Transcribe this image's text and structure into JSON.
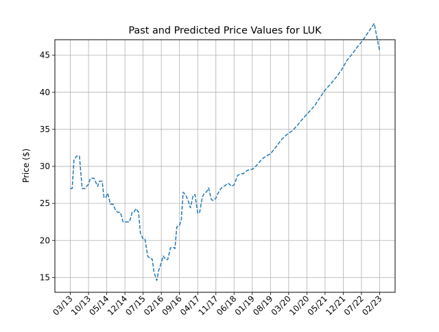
{
  "chart_data": {
    "type": "line",
    "title": "Past and Predicted Price Values for LUK",
    "xlabel": "",
    "ylabel": "Price ($)",
    "x_tick_labels": [
      "03/13",
      "10/13",
      "05/14",
      "12/14",
      "07/15",
      "02/16",
      "09/16",
      "04/17",
      "11/17",
      "06/18",
      "01/19",
      "08/19",
      "03/20",
      "10/20",
      "05/21",
      "12/21",
      "07/22",
      "02/23"
    ],
    "y_ticks": [
      15,
      20,
      25,
      30,
      35,
      40,
      45
    ],
    "xlim": [
      -0.85,
      17.85
    ],
    "ylim": [
      13.0,
      47.1
    ],
    "grid": true,
    "line_color": "#1f77b4",
    "line_style": "dashed",
    "series": [
      {
        "x": [
          0.0,
          0.1,
          0.2,
          0.35,
          0.5,
          0.65,
          0.8,
          1.0,
          1.1,
          1.3,
          1.5,
          1.6,
          1.75,
          1.85,
          1.95,
          2.05,
          2.2,
          2.35,
          2.5,
          2.6,
          2.75,
          2.9,
          3.0,
          3.1,
          3.25,
          3.4,
          3.5,
          3.6,
          3.75,
          3.85,
          4.0,
          4.1,
          4.25,
          4.4,
          4.5,
          4.6,
          4.75,
          4.85,
          5.0,
          5.1,
          5.25,
          5.35,
          5.5,
          5.65,
          5.75,
          5.85,
          6.0,
          6.1,
          6.2,
          6.35,
          6.5,
          6.6,
          6.75,
          6.85,
          7.0,
          7.1,
          7.25,
          7.35,
          7.5,
          7.6,
          7.75,
          7.85,
          8.0,
          8.1,
          8.25,
          8.35,
          8.5,
          8.65,
          8.75,
          8.85,
          9.0,
          9.2,
          9.4,
          9.5,
          9.7,
          9.85,
          10.0,
          10.15,
          10.3,
          10.5,
          10.7,
          10.85,
          11.0,
          11.3,
          11.6,
          11.9,
          12.2,
          12.5,
          12.8,
          13.1,
          13.4,
          13.7,
          14.0,
          14.3,
          14.6,
          14.9,
          15.2,
          15.5,
          15.8,
          16.1,
          16.4,
          16.7,
          17.0
        ],
        "y": [
          27.0,
          27.0,
          30.9,
          31.4,
          31.4,
          27.0,
          27.0,
          27.6,
          28.4,
          28.4,
          27.3,
          28.0,
          28.0,
          25.8,
          25.8,
          26.4,
          24.9,
          24.9,
          24.0,
          23.8,
          23.8,
          22.5,
          22.5,
          22.5,
          22.5,
          23.8,
          23.8,
          24.3,
          23.8,
          21.0,
          20.2,
          20.2,
          17.9,
          17.5,
          17.5,
          15.7,
          14.6,
          15.9,
          17.0,
          17.9,
          17.4,
          17.4,
          19.0,
          19.1,
          18.9,
          21.8,
          22.0,
          22.8,
          26.5,
          26.1,
          25.2,
          24.4,
          26.1,
          26.2,
          23.7,
          23.7,
          25.8,
          26.3,
          26.6,
          27.1,
          25.5,
          25.4,
          25.7,
          26.3,
          26.9,
          27.2,
          27.4,
          27.7,
          27.6,
          27.3,
          27.5,
          28.8,
          29.0,
          29.0,
          29.4,
          29.6,
          29.6,
          29.9,
          30.3,
          30.9,
          31.3,
          31.5,
          31.7,
          32.6,
          33.6,
          34.3,
          34.8,
          35.6,
          36.5,
          37.3,
          38.1,
          39.2,
          40.3,
          41.1,
          42.0,
          43.0,
          44.3,
          45.2,
          46.2,
          47.1,
          48.2,
          49.3,
          45.6
        ]
      }
    ]
  }
}
